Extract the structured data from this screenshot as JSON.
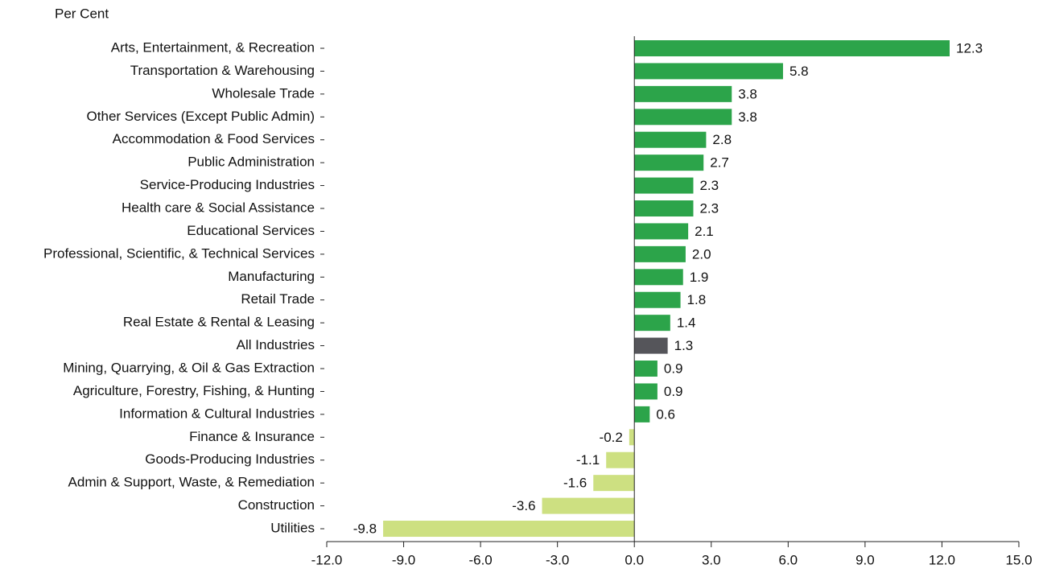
{
  "chart_data": {
    "type": "hbar",
    "y_axis_label": "Per Cent",
    "categories": [
      "Arts, Entertainment, & Recreation",
      "Transportation & Warehousing",
      "Wholesale Trade",
      "Other Services (Except Public Admin)",
      "Accommodation & Food Services",
      "Public Administration",
      "Service-Producing Industries",
      "Health care & Social Assistance",
      "Educational Services",
      "Professional, Scientific, & Technical Services",
      "Manufacturing",
      "Retail Trade",
      "Real Estate & Rental & Leasing",
      "All Industries",
      "Mining, Quarrying, & Oil & Gas Extraction",
      "Agriculture, Forestry, Fishing, & Hunting",
      "Information & Cultural Industries",
      "Finance & Insurance",
      "Goods-Producing Industries",
      "Admin & Support, Waste, & Remediation",
      "Construction",
      "Utilities"
    ],
    "values": [
      12.3,
      5.8,
      3.8,
      3.8,
      2.8,
      2.7,
      2.3,
      2.3,
      2.1,
      2.0,
      1.9,
      1.8,
      1.4,
      1.3,
      0.9,
      0.9,
      0.6,
      -0.2,
      -1.1,
      -1.6,
      -3.6,
      -9.8
    ],
    "value_labels": [
      "12.3",
      "5.8",
      "3.8",
      "3.8",
      "2.8",
      "2.7",
      "2.3",
      "2.3",
      "2.1",
      "2.0",
      "1.9",
      "1.8",
      "1.4",
      "1.3",
      "0.9",
      "0.9",
      "0.6",
      "-0.2",
      "-1.1",
      "-1.6",
      "-3.6",
      "-9.8"
    ],
    "colors": [
      "#2ca44a",
      "#2ca44a",
      "#2ca44a",
      "#2ca44a",
      "#2ca44a",
      "#2ca44a",
      "#2ca44a",
      "#2ca44a",
      "#2ca44a",
      "#2ca44a",
      "#2ca44a",
      "#2ca44a",
      "#2ca44a",
      "#55555a",
      "#2ca44a",
      "#2ca44a",
      "#2ca44a",
      "#cde081",
      "#cde081",
      "#cde081",
      "#cde081",
      "#cde081"
    ],
    "xlim": [
      -12,
      15
    ],
    "xticks": [
      {
        "value": -12,
        "label": "-12.0"
      },
      {
        "value": -9,
        "label": "-9.0"
      },
      {
        "value": -6,
        "label": "-6.0"
      },
      {
        "value": -3,
        "label": "-3.0"
      },
      {
        "value": 0,
        "label": "0.0"
      },
      {
        "value": 3,
        "label": "3.0"
      },
      {
        "value": 6,
        "label": "6.0"
      },
      {
        "value": 9,
        "label": "9.0"
      },
      {
        "value": 12,
        "label": "12.0"
      },
      {
        "value": 15,
        "label": "15.0"
      }
    ]
  }
}
